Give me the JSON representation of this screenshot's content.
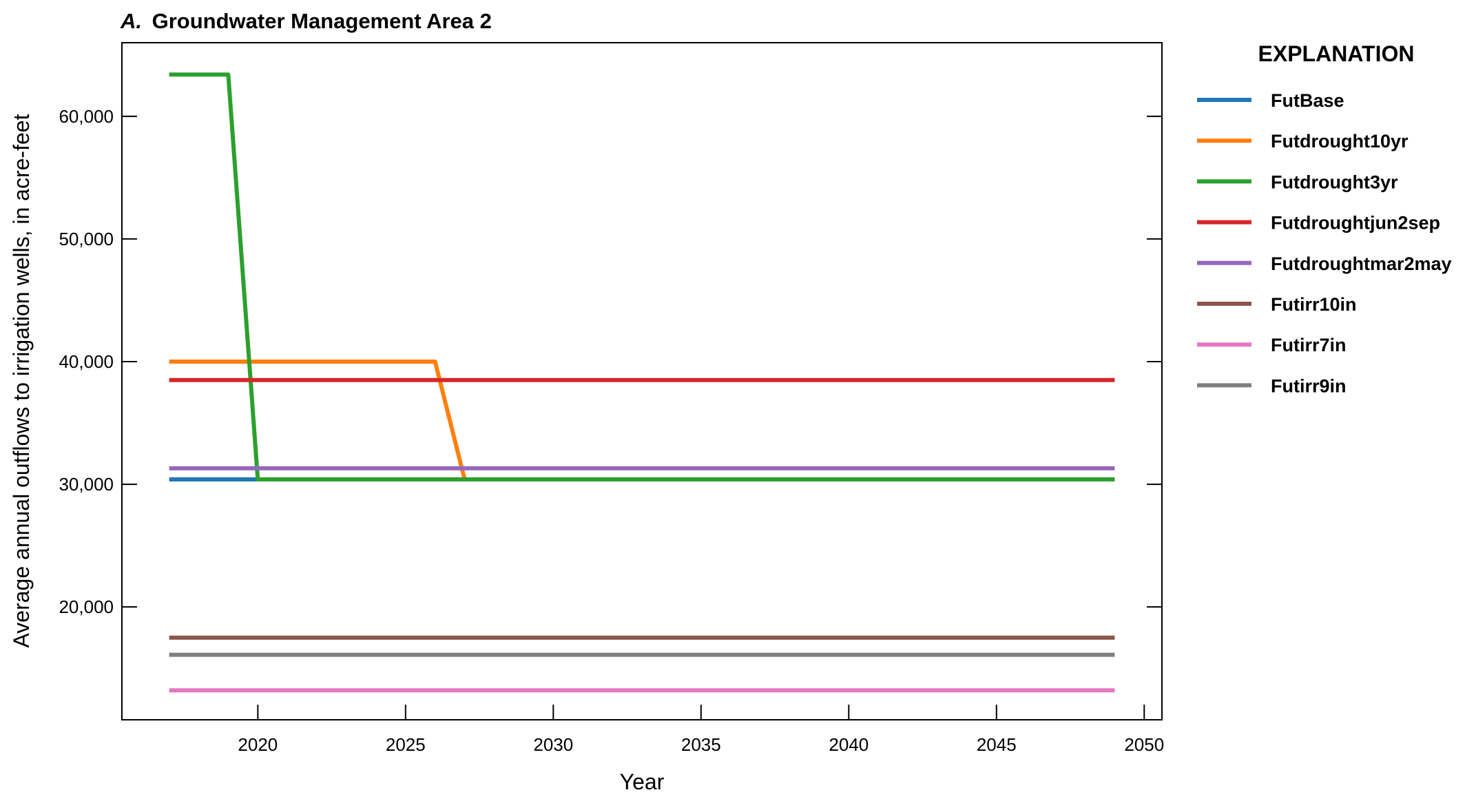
{
  "chart_data": {
    "type": "line",
    "title_prefix": "A.",
    "title": "Groundwater Management Area 2",
    "xlabel": "Year",
    "ylabel": "Average annual outflows to irrigation wells, in acre-feet",
    "xlim": [
      2015.4,
      2050.6
    ],
    "ylim": [
      10800,
      66000
    ],
    "xticks": [
      2020,
      2025,
      2030,
      2035,
      2040,
      2045,
      2050
    ],
    "yticks": [
      20000,
      30000,
      40000,
      50000,
      60000
    ],
    "ytick_labels": [
      "20,000",
      "30,000",
      "40,000",
      "50,000",
      "60,000"
    ],
    "grid": false,
    "legend_title": "EXPLANATION",
    "legend_position": "right",
    "series": [
      {
        "name": "FutBase",
        "color": "#1f77b4",
        "x": [
          2017,
          2049
        ],
        "y": [
          30400,
          30400
        ]
      },
      {
        "name": "Futdrought10yr",
        "color": "#ff7f0e",
        "x": [
          2017,
          2026,
          2027,
          2049
        ],
        "y": [
          40000,
          40000,
          30400,
          30400
        ]
      },
      {
        "name": "Futdrought3yr",
        "color": "#2ca02c",
        "x": [
          2017,
          2019,
          2020,
          2049
        ],
        "y": [
          63400,
          63400,
          30400,
          30400
        ]
      },
      {
        "name": "Futdroughtjun2sep",
        "color": "#d62728",
        "x": [
          2017,
          2049
        ],
        "y": [
          38500,
          38500
        ]
      },
      {
        "name": "Futdroughtmar2may",
        "color": "#9467bd",
        "x": [
          2017,
          2049
        ],
        "y": [
          31300,
          31300
        ]
      },
      {
        "name": "Futirr10in",
        "color": "#8c564b",
        "x": [
          2017,
          2049
        ],
        "y": [
          17500,
          17500
        ]
      },
      {
        "name": "Futirr7in",
        "color": "#e377c2",
        "x": [
          2017,
          2049
        ],
        "y": [
          13200,
          13200
        ]
      },
      {
        "name": "Futirr9in",
        "color": "#7f7f7f",
        "x": [
          2017,
          2049
        ],
        "y": [
          16100,
          16100
        ]
      }
    ]
  }
}
